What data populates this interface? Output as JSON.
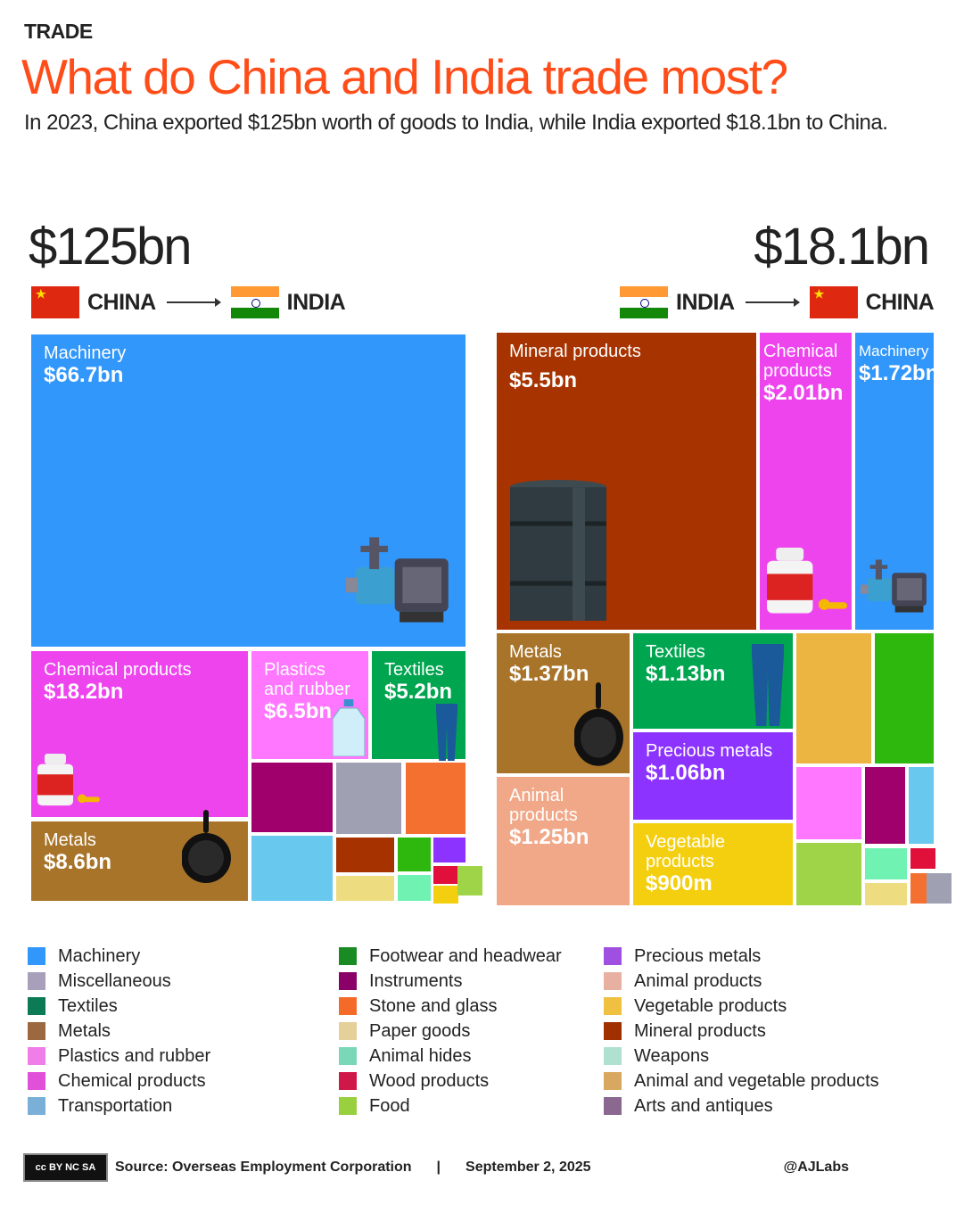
{
  "header": {
    "kicker": "TRADE",
    "title": "What do China and India trade most?",
    "subtitle": "In 2023, China exported $125bn worth of goods to India, while India exported $18.1bn to China."
  },
  "colors": {
    "title": "#ff4d1a"
  },
  "chart_data": [
    {
      "type": "treemap",
      "title": "$125bn",
      "from": "CHINA",
      "to": "INDIA",
      "tiles": [
        {
          "category": "Machinery",
          "label": "Machinery",
          "value_label": "$66.7bn",
          "value": 66.7,
          "color": "#3197fb",
          "icon": "water-pump-icon"
        },
        {
          "category": "Chemical products",
          "label": "Chemical products",
          "value_label": "$18.2bn",
          "value": 18.2,
          "color": "#ee44ee",
          "icon": "pill-bottle-icon"
        },
        {
          "category": "Plastics and rubber",
          "label": "Plastics and rubber",
          "value_label": "$6.5bn",
          "value": 6.5,
          "color": "#ff77ff",
          "icon": "water-jug-icon"
        },
        {
          "category": "Textiles",
          "label": "Textiles",
          "value_label": "$5.2bn",
          "value": 5.2,
          "color": "#00a550",
          "icon": "jeans-icon"
        },
        {
          "category": "Metals",
          "label": "Metals",
          "value_label": "$8.6bn",
          "value": 8.6,
          "color": "#a8742a",
          "icon": "frying-pan-icon"
        },
        {
          "category": "Instruments",
          "color": "#a0006c"
        },
        {
          "category": "Miscellaneous",
          "color": "#9fa1b3"
        },
        {
          "category": "Stone and glass",
          "color": "#f47030"
        },
        {
          "category": "Transportation",
          "color": "#68c8ee"
        },
        {
          "category": "Mineral products",
          "color": "#a63200"
        },
        {
          "category": "Paper goods",
          "color": "#eedc80"
        },
        {
          "category": "Footwear and headwear",
          "color": "#2eb80e"
        },
        {
          "category": "Animal hides",
          "color": "#6ff2b2"
        },
        {
          "category": "Precious metals",
          "color": "#8c33ff"
        },
        {
          "category": "Wood products",
          "color": "#e0103a"
        },
        {
          "category": "Vegetable products",
          "color": "#f4cf10"
        },
        {
          "category": "Food",
          "color": "#a0d448"
        }
      ]
    },
    {
      "type": "treemap",
      "title": "$18.1bn",
      "from": "INDIA",
      "to": "CHINA",
      "tiles": [
        {
          "category": "Mineral products",
          "label": "Mineral products",
          "value_label": "$5.5bn",
          "value": 5.5,
          "color": "#a63300",
          "icon": "oil-barrel-icon"
        },
        {
          "category": "Chemical products",
          "label": "Chemical products",
          "value_label": "$2.01bn",
          "value": 2.01,
          "color": "#ee44ee",
          "icon": "pill-bottle-icon"
        },
        {
          "category": "Machinery",
          "label": "Machinery",
          "value_label": "$1.72bn",
          "value": 1.72,
          "color": "#3197fb",
          "icon": "water-pump-icon"
        },
        {
          "category": "Metals",
          "label": "Metals",
          "value_label": "$1.37bn",
          "value": 1.37,
          "color": "#a8742a",
          "icon": "frying-pan-icon"
        },
        {
          "category": "Textiles",
          "label": "Textiles",
          "value_label": "$1.13bn",
          "value": 1.13,
          "color": "#00a550",
          "icon": "jeans-icon"
        },
        {
          "category": "Precious metals",
          "label": "Precious metals",
          "value_label": "$1.06bn",
          "value": 1.06,
          "color": "#8c33ff"
        },
        {
          "category": "Animal products",
          "label": "Animal products",
          "value_label": "$1.25bn",
          "value": 1.25,
          "color": "#f0a888"
        },
        {
          "category": "Vegetable products",
          "label": "Vegetable products",
          "value_label": "$900m",
          "value": 0.9,
          "color": "#f4cf10"
        },
        {
          "category": "Animal and vegetable products",
          "color": "#ecb440"
        },
        {
          "category": "Footwear and headwear",
          "color": "#2eb80e"
        },
        {
          "category": "Plastics and rubber",
          "color": "#ff77ff"
        },
        {
          "category": "Instruments",
          "color": "#a0006c"
        },
        {
          "category": "Transportation",
          "color": "#68c8ee"
        },
        {
          "category": "Food",
          "color": "#a0d448"
        },
        {
          "category": "Animal hides",
          "color": "#6ff2b2"
        },
        {
          "category": "Paper goods",
          "color": "#eedc80"
        },
        {
          "category": "Wood products",
          "color": "#e0103a"
        },
        {
          "category": "Stone and glass",
          "color": "#f47030"
        },
        {
          "category": "Miscellaneous",
          "color": "#9fa1b3"
        }
      ]
    }
  ],
  "legend": [
    [
      {
        "label": "Machinery",
        "color": "#3197fb"
      },
      {
        "label": "Miscellaneous",
        "color": "#a8a0bb"
      },
      {
        "label": "Textiles",
        "color": "#0b7a55"
      },
      {
        "label": "Metals",
        "color": "#9c6840"
      },
      {
        "label": "Plastics and rubber",
        "color": "#f07ee8"
      },
      {
        "label": "Chemical products",
        "color": "#e050d8"
      },
      {
        "label": "Transportation",
        "color": "#7ab0d8"
      }
    ],
    [
      {
        "label": "Footwear and headwear",
        "color": "#1a8a22"
      },
      {
        "label": "Instruments",
        "color": "#8a0068"
      },
      {
        "label": "Stone and glass",
        "color": "#f46a28"
      },
      {
        "label": "Paper goods",
        "color": "#e4d098"
      },
      {
        "label": "Animal hides",
        "color": "#7ad8b8"
      },
      {
        "label": "Wood products",
        "color": "#d01848"
      },
      {
        "label": "Food",
        "color": "#98d040"
      }
    ],
    [
      {
        "label": "Precious metals",
        "color": "#a050e0"
      },
      {
        "label": "Animal products",
        "color": "#e8b0a0"
      },
      {
        "label": "Vegetable products",
        "color": "#f0c040"
      },
      {
        "label": "Mineral products",
        "color": "#a03000"
      },
      {
        "label": "Weapons",
        "color": "#b0e0d0"
      },
      {
        "label": "Animal and vegetable products",
        "color": "#d8a860"
      },
      {
        "label": "Arts and antiques",
        "color": "#8a6890"
      }
    ]
  ],
  "footer": {
    "license": "cc BY NC SA",
    "source": "Source:  Overseas Employment Corporation",
    "separator": "|",
    "date": "September 2, 2025",
    "credit": "@AJLabs"
  }
}
